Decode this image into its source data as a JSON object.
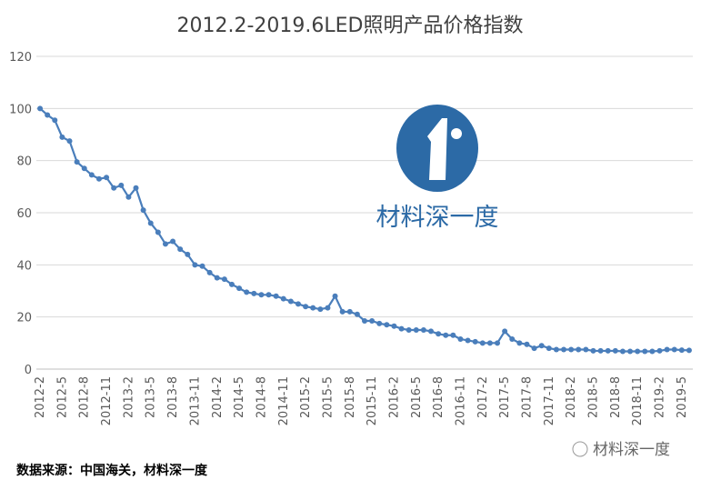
{
  "chart_data": {
    "type": "line",
    "title": "2012.2-2019.6LED照明产品价格指数",
    "categories": [
      "2012-2",
      null,
      null,
      "2012-5",
      null,
      null,
      "2012-8",
      null,
      null,
      "2012-11",
      null,
      null,
      "2013-2",
      null,
      null,
      "2013-5",
      null,
      null,
      "2013-8",
      null,
      null,
      "2013-11",
      null,
      null,
      "2014-2",
      null,
      null,
      "2014-5",
      null,
      null,
      "2014-8",
      null,
      null,
      "2014-11",
      null,
      null,
      "2015-2",
      null,
      null,
      "2015-5",
      null,
      null,
      "2015-8",
      null,
      null,
      "2015-11",
      null,
      null,
      "2016-2",
      null,
      null,
      "2016-5",
      null,
      null,
      "2016-8",
      null,
      null,
      "2016-11",
      null,
      null,
      "2017-2",
      null,
      null,
      "2017-5",
      null,
      null,
      "2017-8",
      null,
      null,
      "2017-11",
      null,
      null,
      "2018-2",
      null,
      null,
      "2018-5",
      null,
      null,
      "2018-8",
      null,
      null,
      "2018-11",
      null,
      null,
      "2019-2",
      null,
      null,
      "2019-5",
      null
    ],
    "values": [
      100,
      97.5,
      95.5,
      89,
      87.5,
      79.5,
      77,
      74.5,
      73,
      73.5,
      69.5,
      70.5,
      66,
      69.5,
      61,
      56,
      52.5,
      48,
      49,
      46,
      44,
      40,
      39.5,
      37,
      35,
      34.5,
      32.5,
      31,
      29.5,
      29,
      28.5,
      28.5,
      28,
      27,
      26,
      25,
      24,
      23.5,
      23,
      23.5,
      28,
      22,
      22,
      21,
      18.5,
      18.5,
      17.5,
      17,
      16.5,
      15.5,
      15,
      15,
      15,
      14.5,
      13.5,
      13,
      13,
      11.5,
      11,
      10.5,
      10,
      10,
      10,
      14.5,
      11.5,
      10,
      9.5,
      8,
      9,
      8,
      7.5,
      7.5,
      7.5,
      7.5,
      7.5,
      7,
      7,
      7,
      7,
      6.8,
      6.8,
      6.8,
      6.8,
      6.8,
      7,
      7.5,
      7.5,
      7.3,
      7.2
    ],
    "color": "#4a7ebb",
    "ylim": [
      0,
      120
    ],
    "yticks": [
      0,
      20,
      40,
      60,
      80,
      100,
      120
    ],
    "grid": true,
    "logo_text": "材料深一度",
    "source": "数据来源：中国海关，材料深一度",
    "watermark": "材料深一度"
  }
}
